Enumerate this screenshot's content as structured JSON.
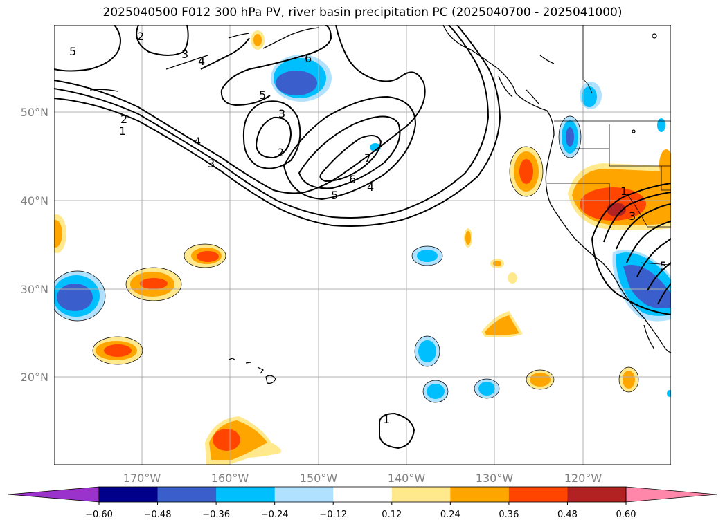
{
  "title": "2025040500 F012 300 hPa PV, river basin precipitation PC (2025040700 - 2025041000)",
  "lat_labels": [
    "50°N",
    "40°N",
    "30°N",
    "20°N"
  ],
  "lon_labels": [
    "170°W",
    "160°W",
    "150°W",
    "140°W",
    "130°W",
    "120°W"
  ],
  "colorbar": {
    "ticks": [
      "−0.60",
      "−0.48",
      "−0.36",
      "−0.24",
      "−0.12",
      "0.12",
      "0.24",
      "0.36",
      "0.48",
      "0.60"
    ],
    "colors": [
      "#9933cc",
      "#00008b",
      "#3a5fcd",
      "#00bfff",
      "#b0e2ff",
      "#ffffff",
      "#ffe98c",
      "#ffa500",
      "#ff4500",
      "#b22222",
      "#ff88aa"
    ]
  },
  "contour_labels": [
    "1",
    "2",
    "3",
    "4",
    "5",
    "6",
    "7"
  ],
  "colors": {
    "grid": "#b0b0b0",
    "contour": "#000000",
    "land_outline": "#000000"
  }
}
